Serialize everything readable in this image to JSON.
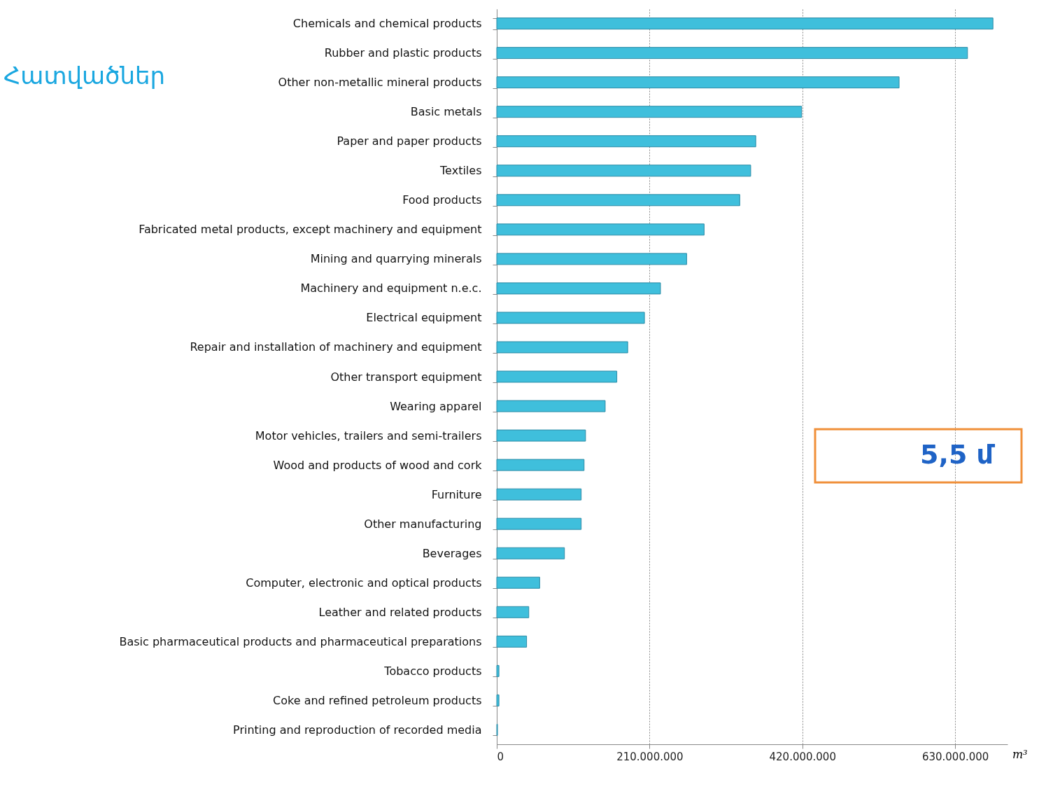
{
  "chart_data": {
    "type": "bar",
    "orientation": "horizontal",
    "title": "Հատվածներ",
    "xlabel": "m³",
    "categories": [
      "Chemicals and chemical products",
      "Rubber and plastic products",
      "Other non-metallic mineral products",
      "Basic metals",
      "Paper and paper products",
      "Textiles",
      "Food products",
      "Fabricated metal products, except machinery and equipment",
      "Mining and quarrying minerals",
      "Machinery and equipment n.e.c.",
      "Electrical equipment",
      "Repair and installation of machinery and equipment",
      "Other transport equipment",
      "Wearing apparel",
      "Motor vehicles, trailers and semi-trailers",
      "Wood and products of wood and cork",
      "Furniture",
      "Other manufacturing",
      "Beverages",
      "Computer, electronic and optical products",
      "Leather and related products",
      "Basic pharmaceutical products and pharmaceutical preparations",
      "Tobacco products",
      "Coke and refined petroleum products",
      "Printing and reproduction of recorded media"
    ],
    "values": [
      682000000,
      647000000,
      553000000,
      419000000,
      356000000,
      349000000,
      334000000,
      285000000,
      261000000,
      225000000,
      203000000,
      180000000,
      165000000,
      149000000,
      122000000,
      120000000,
      116000000,
      116000000,
      93000000,
      59000000,
      44000000,
      41000000,
      3000000,
      3000000,
      1000000
    ],
    "color": "#3fbfdc",
    "xlim": [
      0,
      702000000
    ],
    "xticks": [
      0,
      {
        "value": 210000000,
        "label": "210.000.000"
      },
      {
        "value": 420000000,
        "label": "420.000.000"
      },
      {
        "value": 630000000,
        "label": "630.000.000"
      }
    ],
    "grid": "x",
    "annotations": [
      "5,5 մ"
    ]
  }
}
